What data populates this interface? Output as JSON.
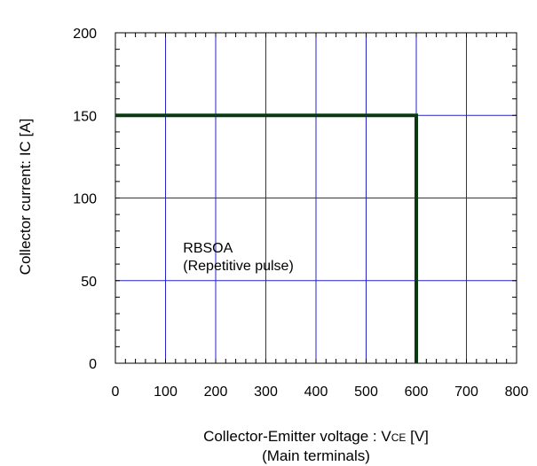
{
  "chart_data": {
    "type": "line",
    "title": "",
    "xlabel": "Collector-Emitter voltage : V",
    "xlabel_sub": "CE",
    "xlabel_unit": " [V]",
    "xlabel_line2": "(Main terminals)",
    "ylabel": "Collector current: IC [A]",
    "xlim": [
      0,
      800
    ],
    "ylim": [
      0,
      200
    ],
    "xticks": [
      0,
      100,
      200,
      300,
      400,
      500,
      600,
      700,
      800
    ],
    "yticks": [
      0,
      50,
      100,
      150,
      200
    ],
    "x_minor_step": 20,
    "y_minor_step": 10,
    "grid": true,
    "legend": "none",
    "colors": {
      "series": "#0a3a12",
      "grid": "#2323c8",
      "frame": "#000000"
    },
    "series": [
      {
        "x": [
          0,
          600,
          600
        ],
        "y": [
          150,
          150,
          0
        ]
      }
    ],
    "annotations": [
      {
        "lines": [
          "RBSOA",
          "(Repetitive pulse)"
        ],
        "x": 135,
        "y": 67
      }
    ]
  }
}
